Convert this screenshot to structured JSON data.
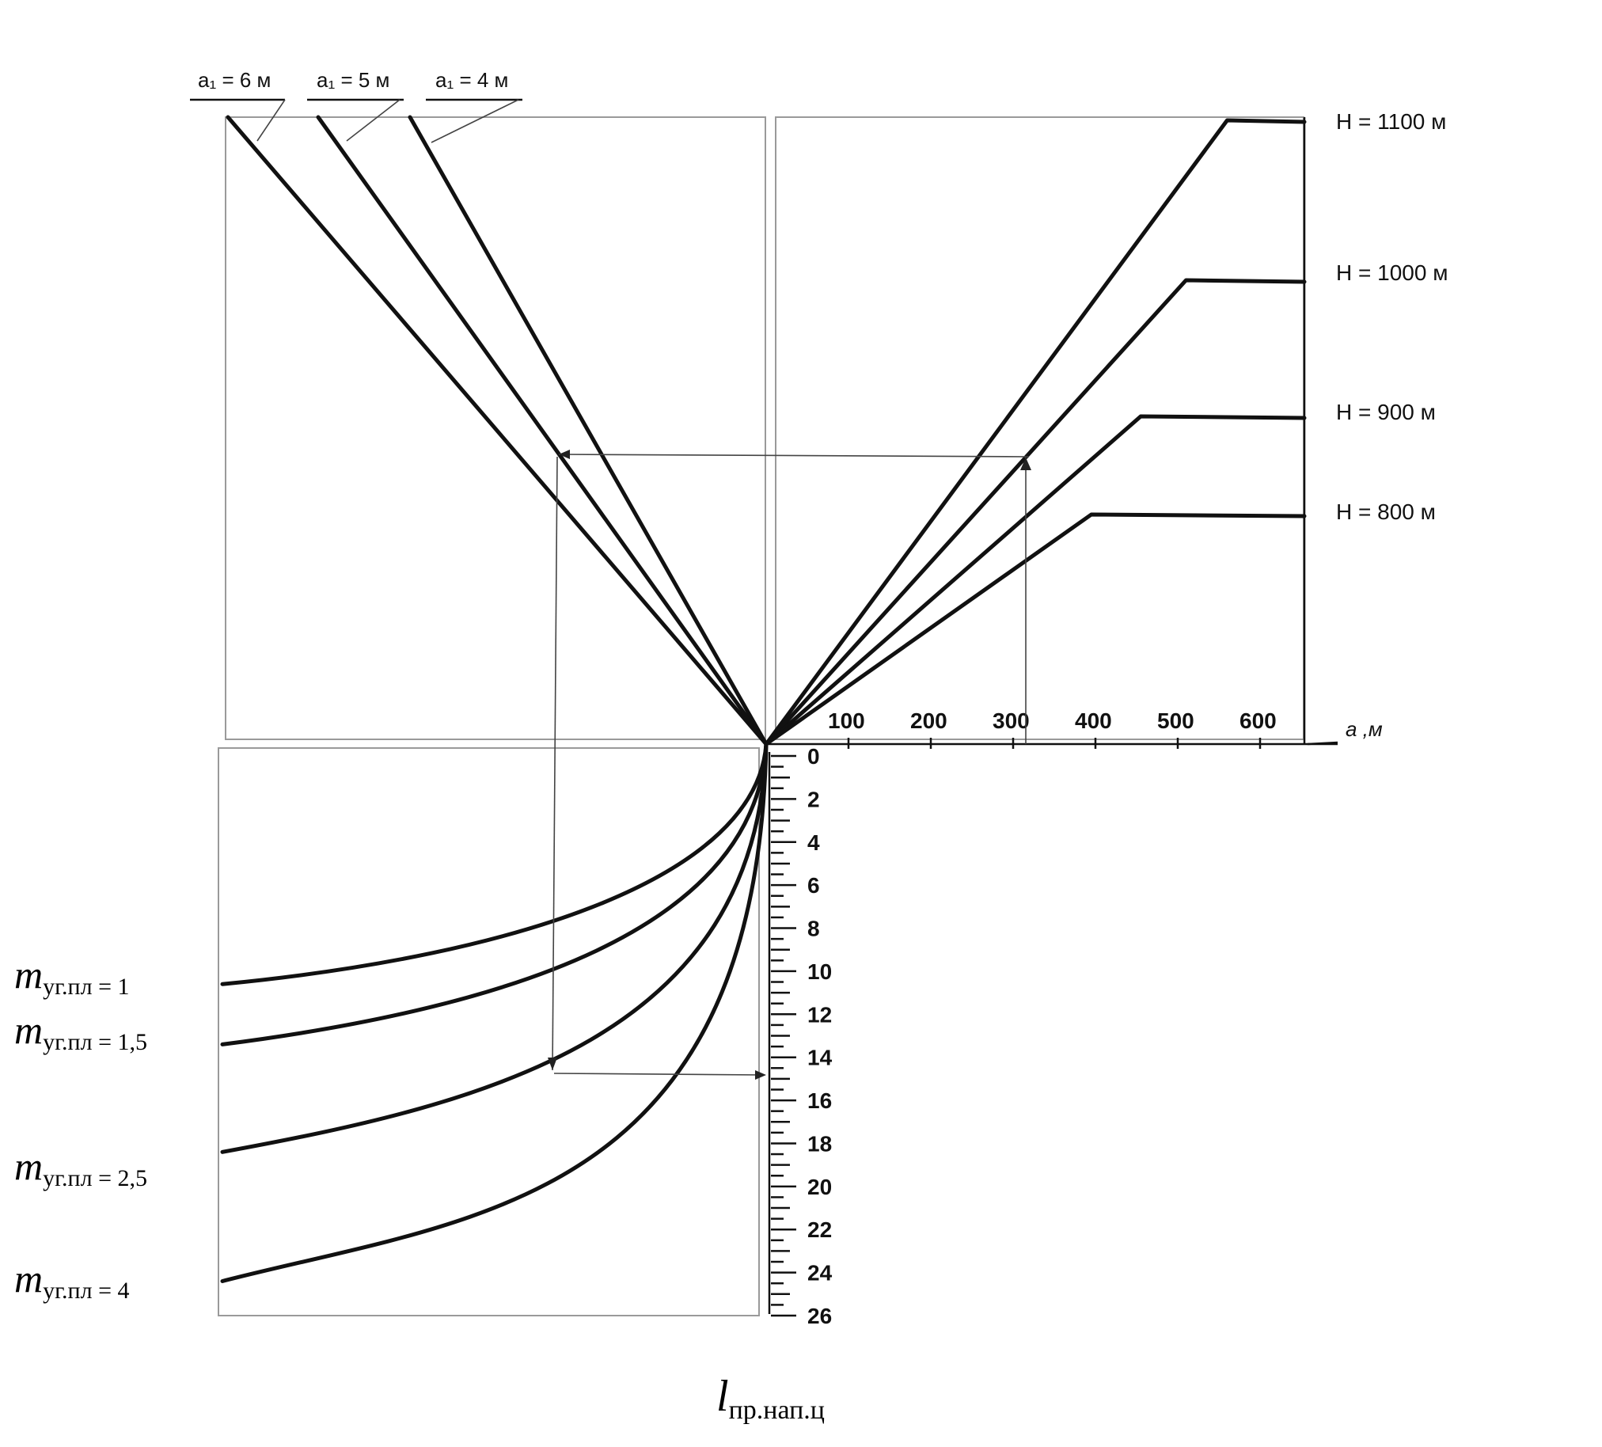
{
  "chart_data": {
    "type": "nomogram",
    "top_left": {
      "series": [
        {
          "name": "a₁ = 6 м",
          "label": "a₁ = 6 м"
        },
        {
          "name": "a₁ = 5 м",
          "label": "a₁ = 5 м"
        },
        {
          "name": "a₁ = 4 м",
          "label": "a₁ = 4 м"
        }
      ]
    },
    "top_right": {
      "x_label": "a ,м",
      "x_ticks": [
        "100",
        "200",
        "300",
        "400",
        "500",
        "600"
      ],
      "xlim": [
        0,
        650
      ],
      "series": [
        {
          "name": "H = 1100 м",
          "label": "H = 1100 м",
          "a_break": 560
        },
        {
          "name": "H = 1000 м",
          "label": "H = 1000 м",
          "a_break": 510
        },
        {
          "name": "H = 900 м",
          "label": "H = 900 м",
          "a_break": 455
        },
        {
          "name": "H = 800 м",
          "label": "H = 800 м",
          "a_break": 395
        }
      ]
    },
    "bottom_left": {
      "series": [
        {
          "name": "m_уг.пл = 1",
          "label_main": "m",
          "label_sub": "уг.пл",
          "label_value": " = 1",
          "l_at_left_edge": 10.6
        },
        {
          "name": "m_уг.пл = 1,5",
          "label_main": "m",
          "label_sub": "уг.пл",
          "label_value": " = 1,5",
          "l_at_left_edge": 13.4
        },
        {
          "name": "m_уг.пл = 2,5",
          "label_main": "m",
          "label_sub": "уг.пл",
          "label_value": " = 2,5",
          "l_at_left_edge": 18.4
        },
        {
          "name": "m_уг.пл = 4",
          "label_main": "m",
          "label_sub": "уг.пл",
          "label_value": " = 4",
          "l_at_left_edge": 24.4
        }
      ]
    },
    "l_axis": {
      "label_main": "l",
      "label_sub": "пр.нап.ц",
      "ticks": [
        "0",
        "2",
        "4",
        "6",
        "8",
        "10",
        "12",
        "14",
        "16",
        "18",
        "20",
        "22",
        "24",
        "26"
      ],
      "ylim": [
        0,
        26
      ]
    },
    "example": {
      "a": 300,
      "result_l": 14.8
    }
  }
}
